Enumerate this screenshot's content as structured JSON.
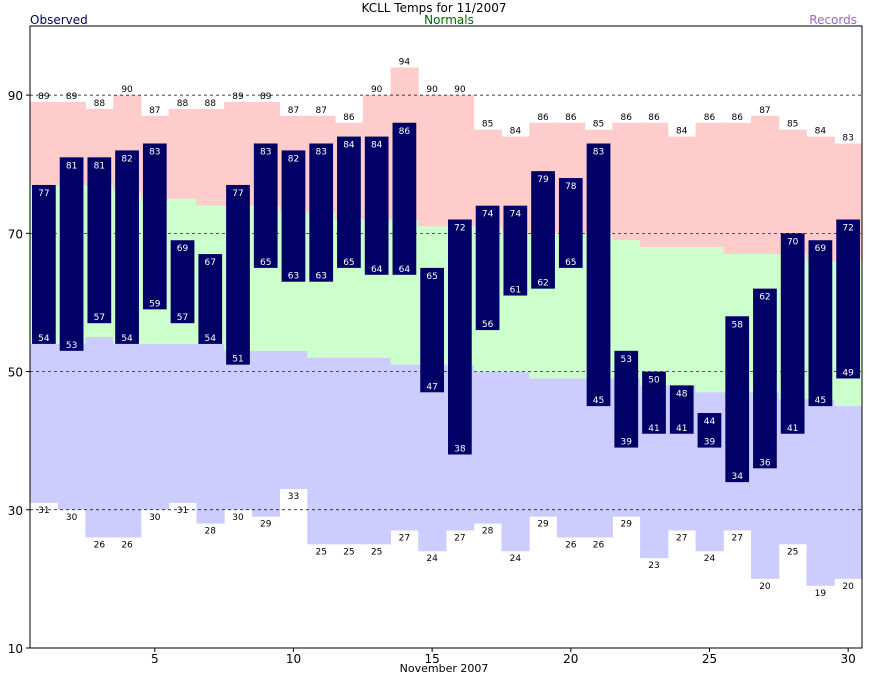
{
  "chart_data": {
    "type": "bar",
    "title": "KCLL Temps for 11/2007",
    "xlabel": "November 2007",
    "ylabel": "",
    "legend": [
      {
        "label": "Observed",
        "color": "#000066",
        "position": "top-left"
      },
      {
        "label": "Normals",
        "color": "#006600",
        "position": "top-center"
      },
      {
        "label": "Records",
        "color": "#9966cc",
        "position": "top-right"
      }
    ],
    "xlim": [
      0.5,
      30.5
    ],
    "ylim": [
      10,
      100
    ],
    "yticks": [
      10,
      30,
      50,
      70,
      90
    ],
    "xticks": [
      5,
      10,
      15,
      20,
      25,
      30
    ],
    "gridlines_y": [
      30,
      50,
      70,
      90
    ],
    "days": [
      1,
      2,
      3,
      4,
      5,
      6,
      7,
      8,
      9,
      10,
      11,
      12,
      13,
      14,
      15,
      16,
      17,
      18,
      19,
      20,
      21,
      22,
      23,
      24,
      25,
      26,
      27,
      28,
      29,
      30
    ],
    "record_high": [
      89,
      89,
      88,
      90,
      87,
      88,
      88,
      89,
      89,
      87,
      87,
      86,
      90,
      94,
      90,
      90,
      85,
      84,
      86,
      86,
      85,
      86,
      86,
      84,
      86,
      86,
      87,
      85,
      84,
      83
    ],
    "record_low": [
      31,
      30,
      26,
      26,
      30,
      31,
      28,
      30,
      29,
      33,
      25,
      25,
      25,
      27,
      24,
      27,
      28,
      24,
      29,
      26,
      26,
      29,
      23,
      27,
      24,
      27,
      20,
      25,
      19,
      20
    ],
    "normal_high": [
      77,
      77,
      77,
      76,
      75,
      75,
      74,
      74,
      74,
      73,
      73,
      72,
      72,
      72,
      71,
      71,
      71,
      70,
      70,
      70,
      70,
      69,
      68,
      68,
      68,
      67,
      67,
      67,
      66,
      66
    ],
    "normal_low": [
      54,
      54,
      55,
      54,
      54,
      54,
      54,
      53,
      53,
      53,
      52,
      52,
      52,
      51,
      51,
      51,
      50,
      50,
      49,
      49,
      49,
      49,
      48,
      48,
      47,
      47,
      47,
      46,
      46,
      45
    ],
    "observed_high": [
      77,
      81,
      81,
      82,
      83,
      69,
      67,
      77,
      83,
      82,
      83,
      84,
      84,
      86,
      65,
      72,
      74,
      74,
      79,
      78,
      83,
      53,
      50,
      48,
      44,
      58,
      62,
      70,
      69,
      72
    ],
    "observed_low": [
      54,
      53,
      57,
      54,
      59,
      57,
      54,
      51,
      65,
      63,
      63,
      65,
      64,
      64,
      47,
      38,
      56,
      61,
      62,
      65,
      45,
      39,
      41,
      41,
      39,
      34,
      36,
      41,
      45,
      49
    ],
    "colors": {
      "observed": "#000066",
      "record_high_fill": "#ffcccc",
      "normal_fill": "#ccffcc",
      "record_low_fill": "#ccccff",
      "normals_text": "#006600",
      "records_text": "#9966cc",
      "grid": "#000000"
    }
  }
}
